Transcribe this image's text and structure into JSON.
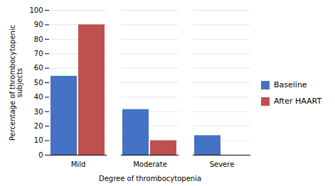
{
  "chart_data": {
    "type": "bar",
    "categories": [
      "Mild",
      "Moderate",
      "Severe"
    ],
    "series": [
      {
        "name": "Baseline",
        "color": "#4472C4",
        "values": [
          54.5,
          31.5,
          13.5
        ]
      },
      {
        "name": "After HAART",
        "color": "#C0504D",
        "values": [
          90.0,
          10.0,
          0.0
        ]
      }
    ],
    "xlabel": "Degree of thrombocytopenia",
    "ylabel": "Percentage of thrombocytopenic\nsubjects",
    "ylim": [
      0,
      100
    ],
    "yticks": [
      0,
      10,
      20,
      30,
      40,
      50,
      60,
      70,
      80,
      90,
      100
    ],
    "grid": true,
    "legend": "right"
  }
}
